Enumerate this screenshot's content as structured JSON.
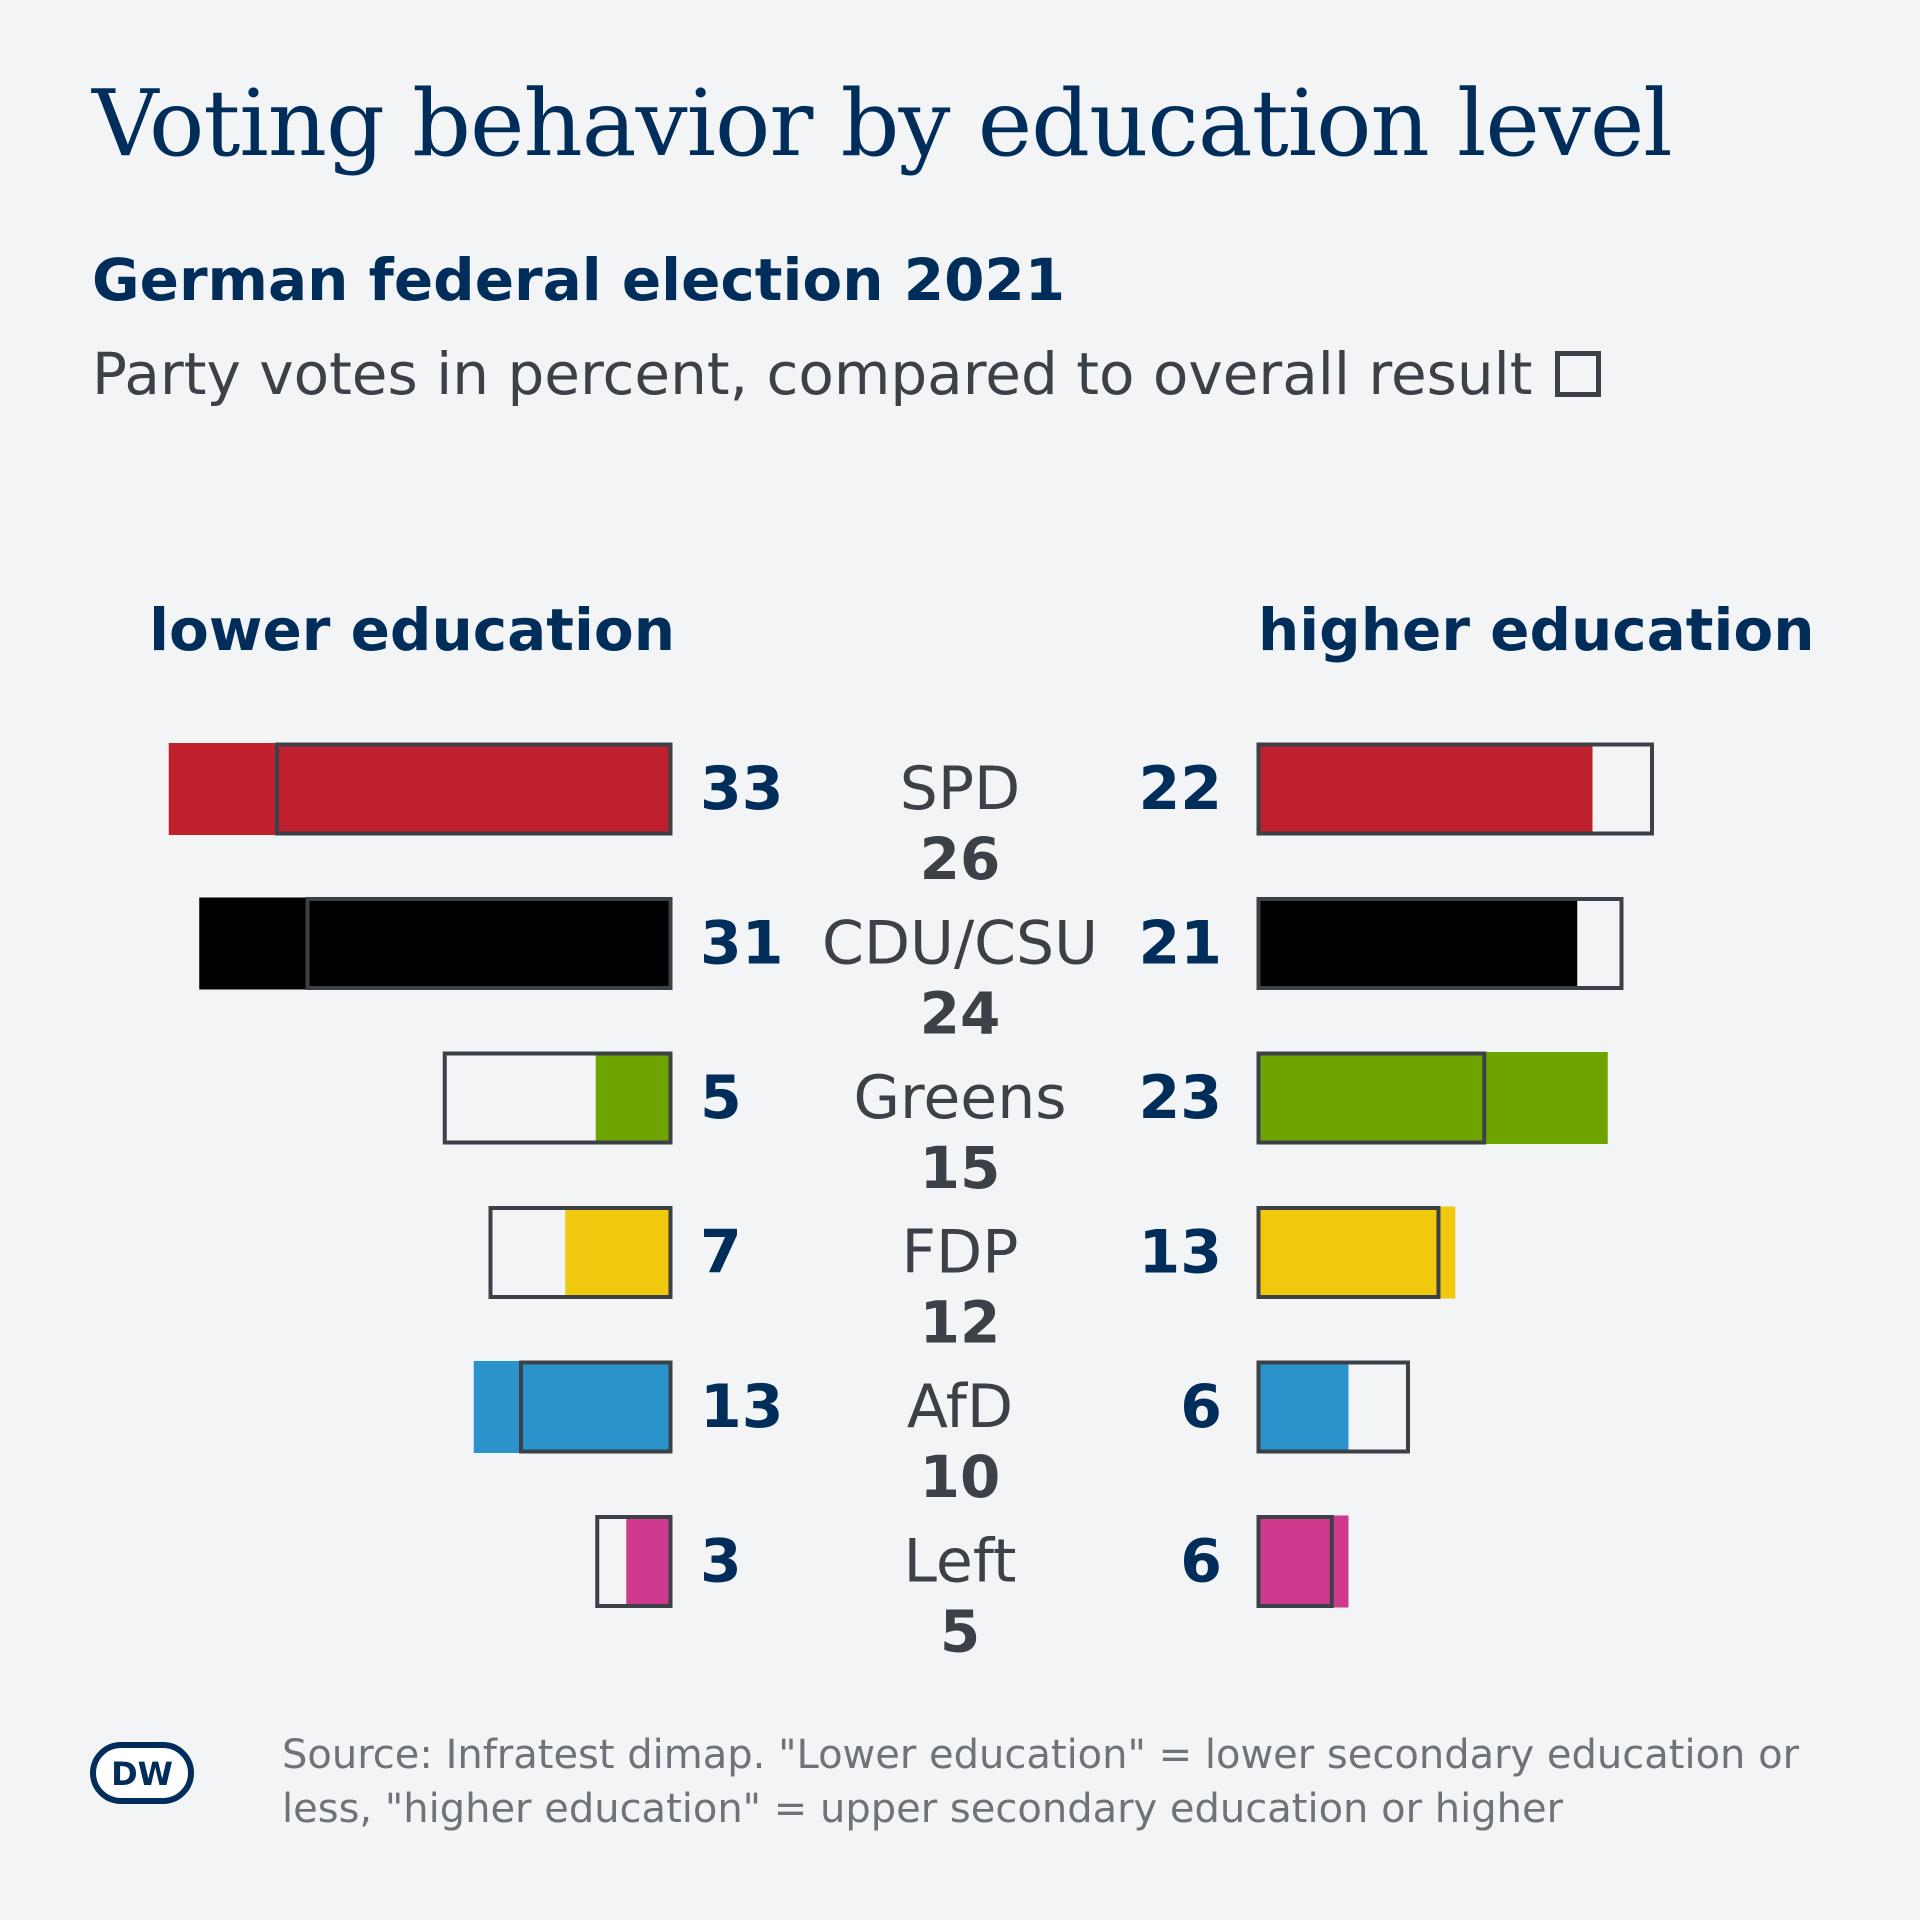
{
  "title": "Voting behavior by education level",
  "subtitle": "German federal election 2021",
  "description": "Party votes in percent, compared to overall result",
  "chart_data": {
    "type": "bar",
    "left_group_label": "lower education",
    "right_group_label": "higher education",
    "categories": [
      "SPD",
      "CDU/CSU",
      "Greens",
      "FDP",
      "AfD",
      "Left"
    ],
    "overall_result": [
      26,
      24,
      15,
      12,
      10,
      5
    ],
    "series": [
      {
        "name": "lower education",
        "values": [
          33,
          31,
          5,
          7,
          13,
          3
        ]
      },
      {
        "name": "higher education",
        "values": [
          22,
          21,
          23,
          13,
          6,
          6
        ]
      }
    ],
    "party_colors": [
      "#be202e",
      "#000000",
      "#6ea400",
      "#f0c80e",
      "#2b93cb",
      "#d03a8e"
    ],
    "overall_outline_color": "#3c4148",
    "legend": "overall result = outlined box"
  },
  "footer": {
    "logo_text": "DW",
    "source": "Source: Infratest dimap. \"Lower education\" = lower secondary education or less, \"higher education\" = upper secondary education or higher"
  }
}
